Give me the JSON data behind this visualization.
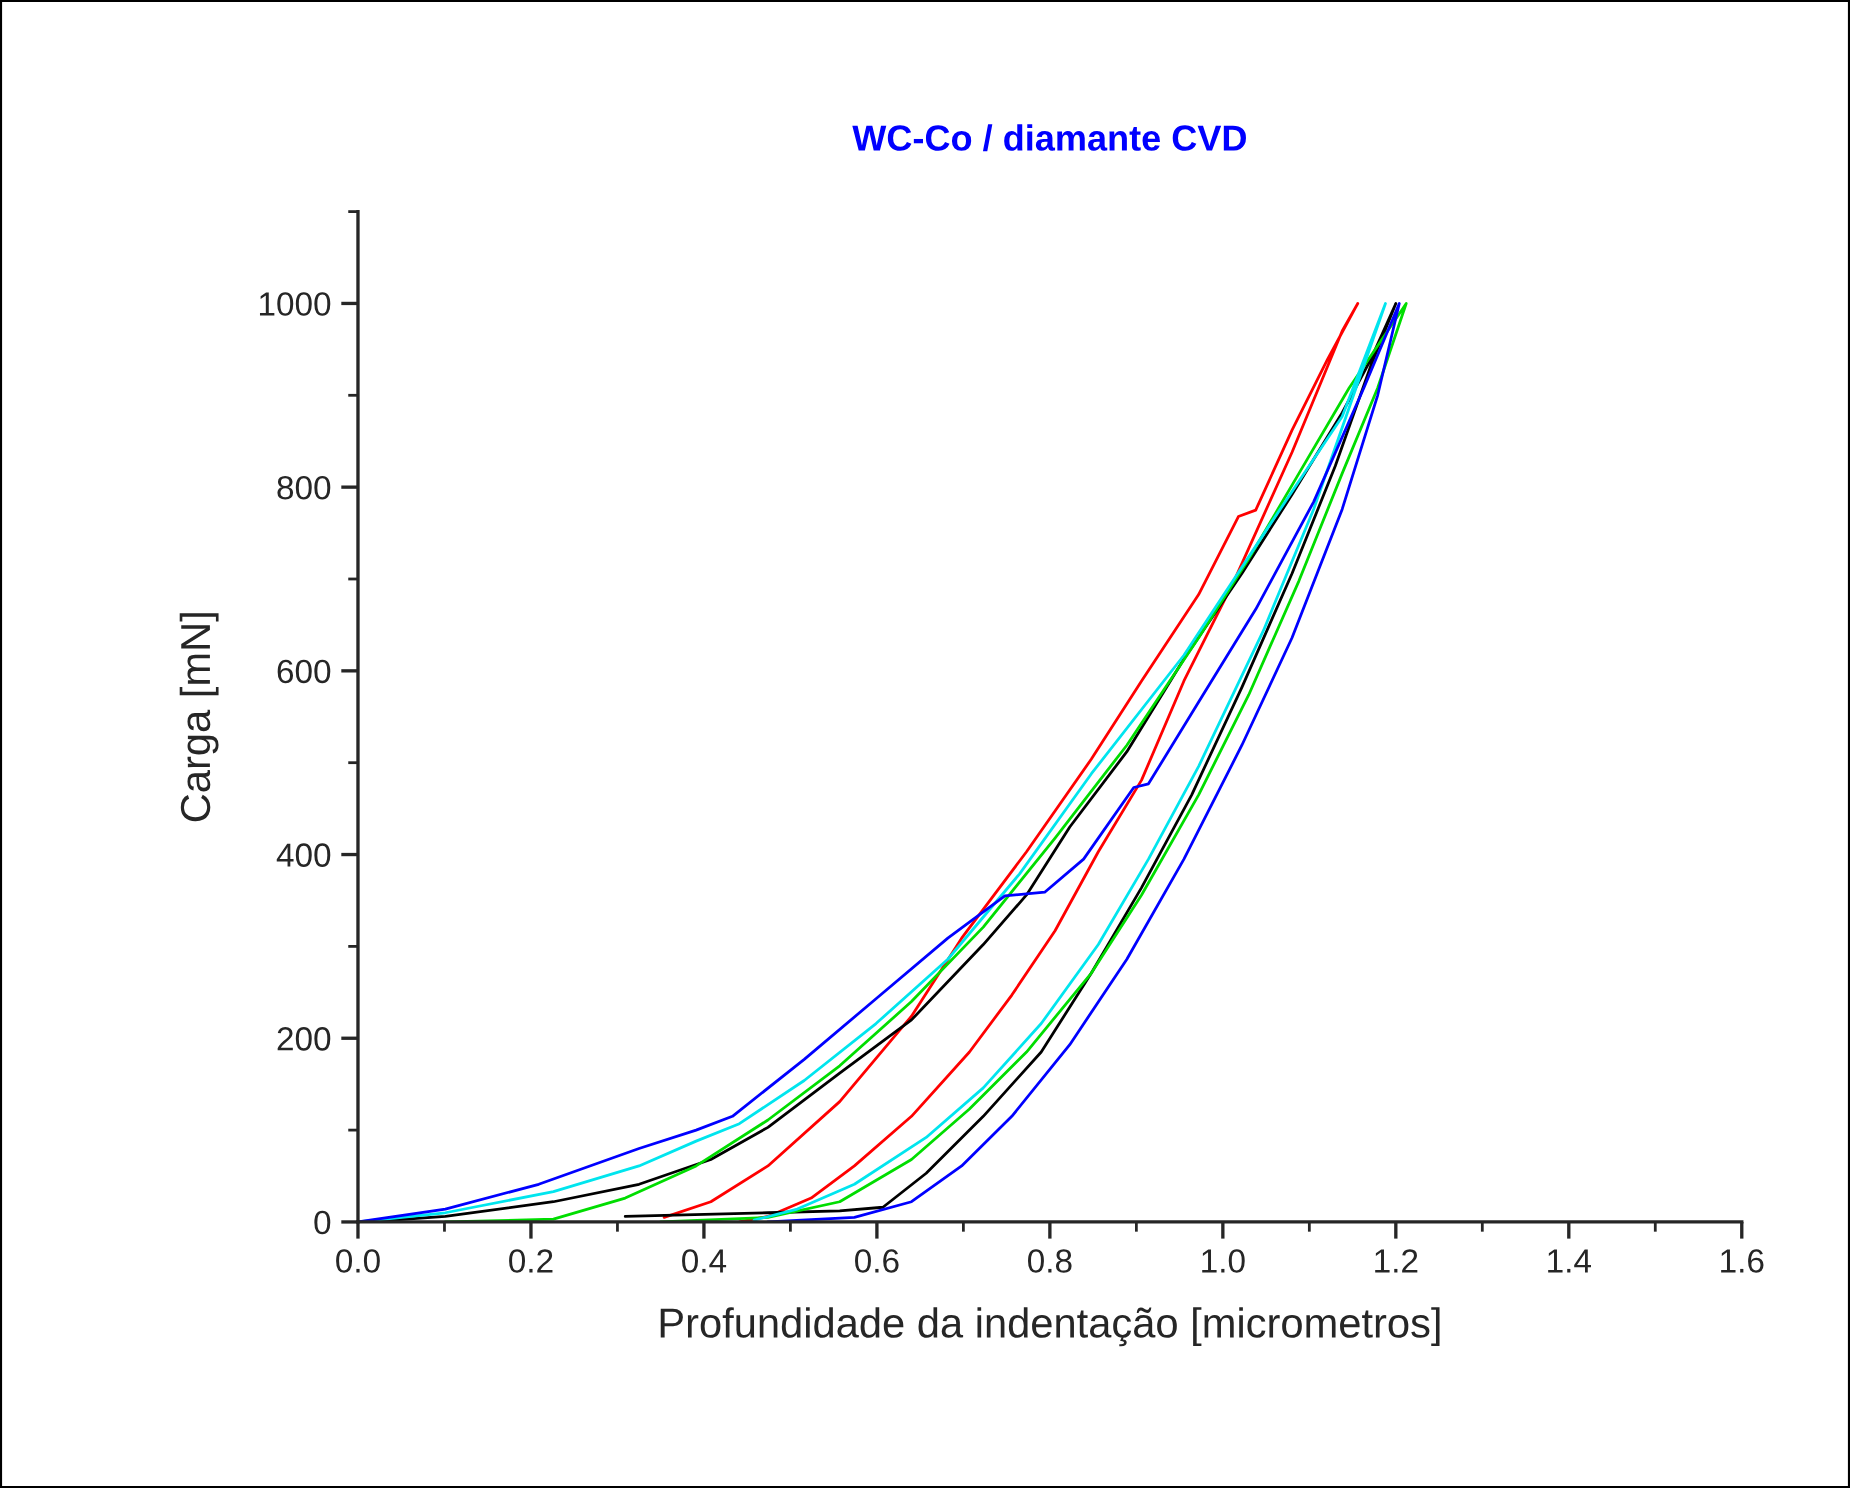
{
  "chart_data": {
    "type": "line",
    "title": "WC-Co / diamante CVD",
    "xlabel": "Profundidade da indentação [micrometros]",
    "ylabel": "Carga [mN]",
    "xlim": [
      0,
      1.6
    ],
    "xticks": [
      {
        "value": 0,
        "label": "0.0"
      },
      {
        "value": 0.2,
        "label": "0.2"
      },
      {
        "value": 0.4,
        "label": "0.4"
      },
      {
        "value": 0.6,
        "label": "0.6"
      },
      {
        "value": 0.8,
        "label": "0.8"
      },
      {
        "value": 1.0,
        "label": "1.0"
      },
      {
        "value": 1.2,
        "label": "1.2"
      },
      {
        "value": 1.4,
        "label": "1.4"
      },
      {
        "value": 1.6,
        "label": "1.6"
      }
    ],
    "ylim": [
      0,
      1100
    ],
    "yticks": [
      0,
      200,
      400,
      600,
      800,
      1000
    ],
    "grid": false,
    "legend": false,
    "marker": "none",
    "line_style": "solid",
    "series": [
      {
        "color": "#ff0000",
        "x": [
          0.354,
          0.408,
          0.474,
          0.557,
          0.64,
          0.698,
          0.773,
          0.848,
          0.906,
          0.972,
          1.018,
          1.038,
          1.08,
          1.121,
          1.156,
          1.138,
          1.08,
          1.013,
          0.955,
          0.906,
          0.856,
          0.806,
          0.756,
          0.707,
          0.64,
          0.574,
          0.524,
          0.474,
          0.441
        ],
        "values": [
          5,
          22,
          61,
          131,
          224,
          309,
          403,
          504,
          589,
          683,
          768,
          775,
          862,
          939,
          1000,
          970,
          838,
          698,
          589,
          481,
          403,
          317,
          247,
          185,
          115,
          61,
          26,
          6,
          0
        ]
      },
      {
        "color": "#000000",
        "x": [
          0.01,
          0.101,
          0.226,
          0.325,
          0.408,
          0.474,
          0.557,
          0.64,
          0.723,
          0.773,
          0.823,
          0.889,
          0.955,
          1.022,
          1.08,
          1.138,
          1.171,
          1.2,
          1.171,
          1.13,
          1.08,
          1.022,
          0.964,
          0.906,
          0.848,
          0.79,
          0.723,
          0.657,
          0.607,
          0.557,
          0.474,
          0.309
        ],
        "values": [
          0,
          6,
          22,
          41,
          68,
          103,
          162,
          220,
          302,
          356,
          430,
          512,
          613,
          706,
          792,
          881,
          939,
          1000,
          932,
          823,
          706,
          582,
          465,
          364,
          271,
          185,
          115,
          53,
          16,
          12,
          10,
          6
        ]
      },
      {
        "color": "#00dd00",
        "x": [
          0.101,
          0.226,
          0.309,
          0.391,
          0.474,
          0.557,
          0.64,
          0.723,
          0.806,
          0.889,
          0.972,
          1.03,
          1.088,
          1.146,
          1.212,
          1.179,
          1.138,
          1.088,
          1.03,
          0.972,
          0.906,
          0.848,
          0.773,
          0.707,
          0.64,
          0.557,
          0.474,
          0.35
        ],
        "values": [
          0,
          3,
          26,
          61,
          111,
          170,
          240,
          321,
          418,
          519,
          636,
          722,
          815,
          908,
          1000,
          908,
          815,
          698,
          574,
          465,
          356,
          271,
          185,
          123,
          68,
          22,
          5,
          0
        ]
      },
      {
        "color": "#00e5ee",
        "x": [
          0.0,
          0.101,
          0.226,
          0.325,
          0.391,
          0.441,
          0.516,
          0.599,
          0.682,
          0.765,
          0.848,
          0.955,
          1.055,
          1.138,
          1.188,
          1.154,
          1.105,
          1.047,
          0.972,
          0.914,
          0.856,
          0.79,
          0.723,
          0.657,
          0.574,
          0.508,
          0.458
        ],
        "values": [
          0,
          10,
          33,
          61,
          88,
          107,
          154,
          216,
          286,
          379,
          488,
          617,
          760,
          877,
          1000,
          908,
          776,
          644,
          496,
          395,
          302,
          216,
          146,
          92,
          41,
          14,
          2
        ]
      },
      {
        "color": "#0000ff",
        "x": [
          0.0,
          0.101,
          0.209,
          0.325,
          0.391,
          0.433,
          0.516,
          0.599,
          0.682,
          0.748,
          0.794,
          0.839,
          0.897,
          0.914,
          0.972,
          1.038,
          1.105,
          1.163,
          1.204,
          1.179,
          1.138,
          1.08,
          1.022,
          0.955,
          0.889,
          0.823,
          0.756,
          0.698,
          0.64,
          0.574,
          0.474
        ],
        "values": [
          0,
          14,
          41,
          80,
          100,
          115,
          177,
          243,
          309,
          355,
          359,
          395,
          473,
          477,
          566,
          667,
          784,
          908,
          1000,
          900,
          776,
          636,
          519,
          395,
          286,
          193,
          115,
          61,
          22,
          5,
          0
        ]
      }
    ]
  }
}
